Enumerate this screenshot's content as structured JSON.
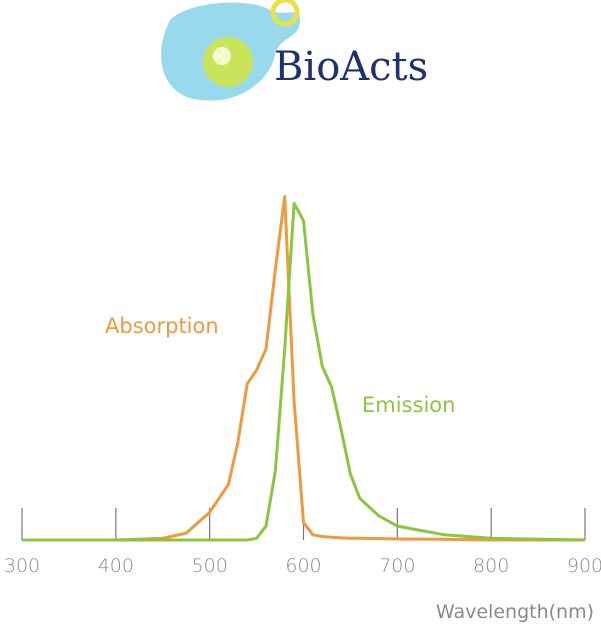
{
  "logo_text": "BioActs",
  "chart_data": {
    "type": "line",
    "x_label": "Wavelength(nm)",
    "x": [
      300,
      400,
      450,
      475,
      500,
      520,
      530,
      540,
      550,
      560,
      570,
      580,
      590,
      600,
      610,
      620,
      630,
      640,
      650,
      660,
      680,
      700,
      750,
      800,
      900
    ],
    "series": [
      {
        "name": "Absorption",
        "color": "#f09a3e",
        "values": [
          0,
          0,
          0.5,
          2,
          8,
          16,
          28,
          45,
          49,
          55,
          78,
          99,
          40,
          5,
          1.5,
          1,
          0.8,
          0.6,
          0.5,
          0.5,
          0.4,
          0.3,
          0.2,
          0,
          0
        ]
      },
      {
        "name": "Emission",
        "color": "#8cc63f",
        "values": [
          0,
          0,
          0,
          0,
          0,
          0,
          0,
          0,
          0.5,
          4,
          20,
          55,
          97,
          92,
          65,
          50,
          44,
          32,
          19,
          12,
          7,
          4,
          1.5,
          0.5,
          0
        ]
      }
    ],
    "xlim": [
      300,
      900
    ],
    "xticks": [
      300,
      400,
      500,
      600,
      700,
      800,
      900
    ],
    "ylim": [
      0,
      100
    ],
    "grid": false
  }
}
